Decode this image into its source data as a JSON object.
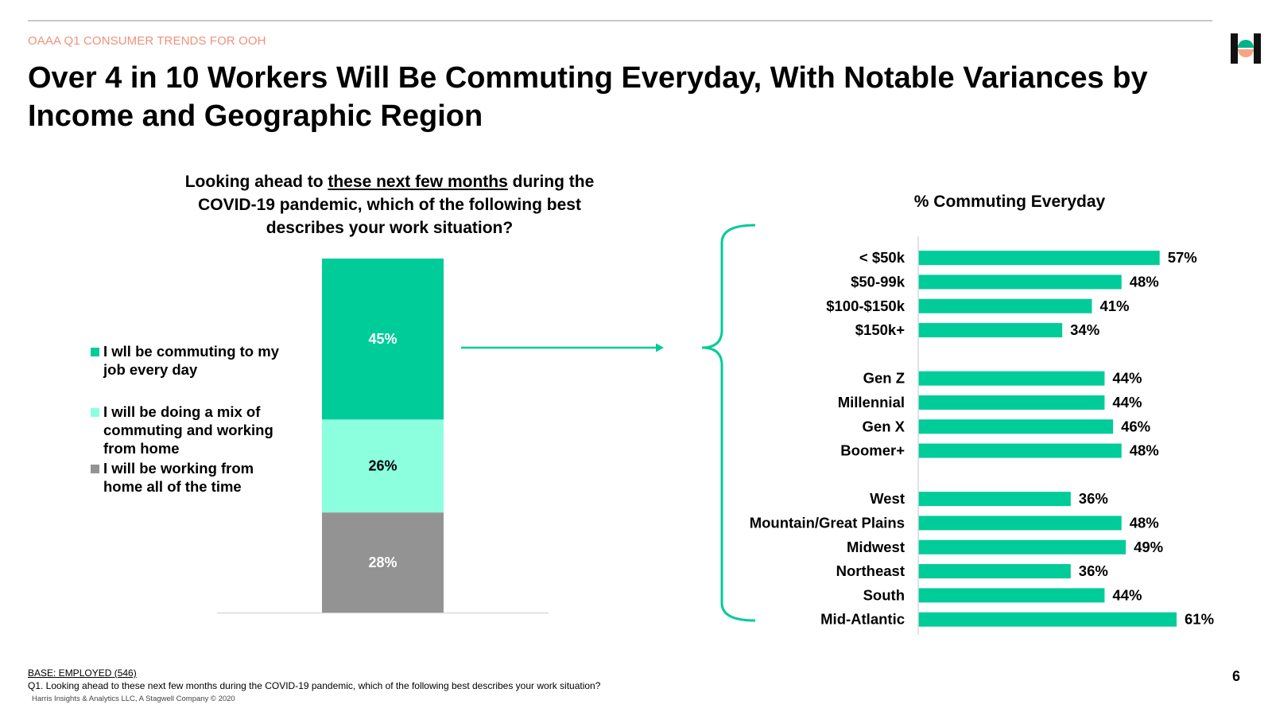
{
  "header": {
    "section_label": "OAAA Q1 CONSUMER TRENDS FOR OOH",
    "title": "Over 4 in 10 Workers Will Be Commuting Everyday, With Notable Variances by Income and Geographic Region"
  },
  "question": {
    "before": "Looking ahead to ",
    "underlined": "these next few months",
    "after": " during the COVID-19 pandemic, which of the following best describes your work situation?"
  },
  "legend": [
    {
      "label": "I wll be commuting to my job every day",
      "color": "#00cc99"
    },
    {
      "label": "I will be doing a mix of commuting and working from home",
      "color": "#8cffdf"
    },
    {
      "label": "I will be working from home all of the time",
      "color": "#939393"
    }
  ],
  "chart_data": [
    {
      "type": "bar",
      "stacked": true,
      "categories": [
        ""
      ],
      "series": [
        {
          "name": "I wll be commuting to my job every day",
          "values": [
            45
          ],
          "label": "45%",
          "color": "#00cc99"
        },
        {
          "name": "I will be doing a mix of commuting and working from home",
          "values": [
            26
          ],
          "label": "26%",
          "color": "#8cffdf"
        },
        {
          "name": "I will be working from home all of the time",
          "values": [
            28
          ],
          "label": "28%",
          "color": "#939393"
        }
      ],
      "ylim": [
        0,
        99
      ]
    },
    {
      "type": "bar",
      "orientation": "horizontal",
      "title": "% Commuting Everyday",
      "groups": [
        {
          "categories": [
            "< $50k",
            "$50-99k",
            "$100-$150k",
            "$150k+"
          ],
          "values": [
            57,
            48,
            41,
            34
          ],
          "labels": [
            "57%",
            "48%",
            "41%",
            "34%"
          ]
        },
        {
          "categories": [
            "Gen Z",
            "Millennial",
            "Gen X",
            "Boomer+"
          ],
          "values": [
            44,
            44,
            46,
            48
          ],
          "labels": [
            "44%",
            "44%",
            "46%",
            "48%"
          ]
        },
        {
          "categories": [
            "West",
            "Mountain/Great Plains",
            "Midwest",
            "Northeast",
            "South",
            "Mid-Atlantic"
          ],
          "values": [
            36,
            48,
            49,
            36,
            44,
            61
          ],
          "labels": [
            "36%",
            "48%",
            "49%",
            "36%",
            "44%",
            "61%"
          ]
        }
      ],
      "color": "#00cc99",
      "xlim": [
        0,
        61
      ]
    }
  ],
  "footer": {
    "base": "BASE: EMPLOYED (546)",
    "question_note": "Q1. Looking ahead to these next few months during the COVID-19 pandemic, which of the following best describes your work situation?",
    "copyright": "Harris Insights & Analytics LLC, A Stagwell Company © 2020",
    "page_number": "6"
  },
  "colors": {
    "accent": "#00cc99",
    "section_label": "#f0917a",
    "logo_dark": "#111111",
    "logo_green": "#00b388",
    "logo_peach": "#f4a582"
  },
  "logo": {
    "icon": "harris-logo-icon"
  }
}
